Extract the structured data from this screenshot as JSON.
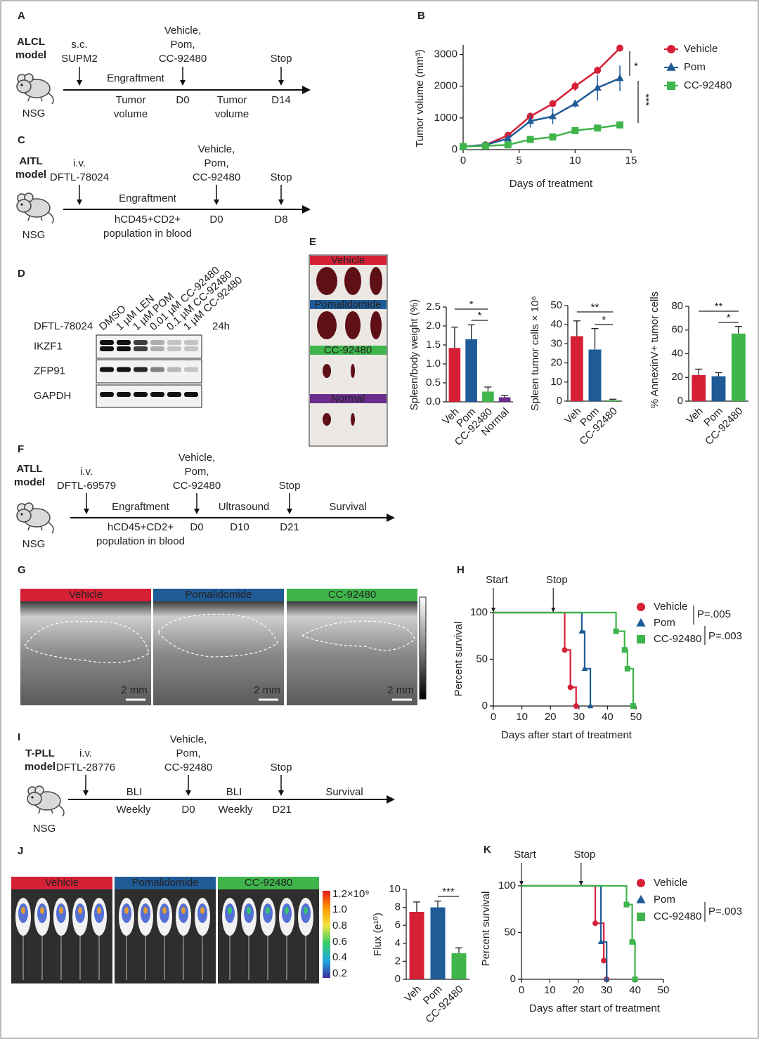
{
  "panel_labels": [
    "A",
    "B",
    "C",
    "D",
    "E",
    "F",
    "G",
    "H",
    "I",
    "J",
    "K"
  ],
  "timelines": [
    {
      "model": [
        "ALCL",
        "model"
      ],
      "mouse": "NSG",
      "above": [
        [
          "s.c.",
          "SUPM2"
        ],
        [
          "Vehicle,",
          "Pom,",
          "CC-92480"
        ],
        [
          "Stop"
        ]
      ],
      "middle": [
        "Engraftment"
      ],
      "below": [
        [
          "Tumor",
          "volume"
        ],
        [
          "D0"
        ],
        [
          "Tumor",
          "volume"
        ],
        [
          "D14"
        ]
      ]
    },
    {
      "model": [
        "AITL",
        "model"
      ],
      "mouse": "NSG",
      "above": [
        [
          "i.v.",
          "DFTL-78024"
        ],
        [
          "Vehicle,",
          "Pom,",
          "CC-92480"
        ],
        [
          "Stop"
        ]
      ],
      "middle": [
        "Engraftment"
      ],
      "below": [
        [
          "hCD45+CD2+",
          "population in blood"
        ],
        [
          "D0"
        ],
        [
          "D8"
        ]
      ]
    },
    {
      "model": [
        "ATLL",
        "model"
      ],
      "mouse": "NSG",
      "above": [
        [
          "i.v.",
          "DFTL-69579"
        ],
        [
          "Vehicle,",
          "Pom,",
          "CC-92480"
        ],
        [
          "Stop"
        ]
      ],
      "middle": [
        "Engraftment",
        "Ultrasound",
        "Survival"
      ],
      "below": [
        [
          "hCD45+CD2+",
          "population in blood"
        ],
        [
          "D0"
        ],
        [
          "D10"
        ],
        [
          "D21"
        ]
      ]
    },
    {
      "model": [
        "T-PLL",
        "model"
      ],
      "mouse": "NSG",
      "above": [
        [
          "i.v.",
          "DFTL-28776"
        ],
        [
          "Vehicle,",
          "Pom,",
          "CC-92480"
        ],
        [
          "Stop"
        ]
      ],
      "middle": [
        "BLI",
        "BLI",
        "Survival"
      ],
      "below": [
        [
          "Weekly"
        ],
        [
          "D0"
        ],
        [
          "Weekly"
        ],
        [
          "D21"
        ]
      ]
    }
  ],
  "western_blot": {
    "cell_line": "DFTL-78024",
    "time": "24h",
    "lanes": [
      "DMSO",
      "1 µM LEN",
      "1 µM POM",
      "0.01 µM CC-92480",
      "0.1 µM CC-92480",
      "1 µM CC-92480"
    ],
    "proteins": [
      "IKZF1",
      "ZFP91",
      "GAPDH"
    ]
  },
  "spleen_photos": {
    "groups": [
      "Vehicle",
      "Pomalidomide",
      "CC-92480",
      "Normal"
    ]
  },
  "ultrasound": {
    "groups": [
      "Vehicle",
      "Pomalidomide",
      "CC-92480"
    ],
    "scale_bars": [
      "2 mm",
      "2 mm",
      "2 mm"
    ]
  },
  "bli_images": {
    "groups": [
      "Vehicle",
      "Pomalidomide",
      "CC-92480"
    ],
    "colorbar_labels": [
      "1.2×10⁹",
      "1.0",
      "0.8",
      "0.6",
      "0.4",
      "0.2"
    ]
  },
  "chart_data": [
    {
      "type": "line",
      "y_label": "Tumor volume (mm³)",
      "x_label": "Days of treatment",
      "x": [
        0,
        2,
        4,
        6,
        8,
        10,
        12,
        14
      ],
      "series": [
        {
          "name": "Vehicle",
          "color": "#d62036",
          "marker": "circle",
          "values": [
            100,
            150,
            450,
            1050,
            1450,
            2000,
            2500,
            3200
          ],
          "errors": [
            30,
            30,
            60,
            120,
            80,
            150,
            120,
            100
          ]
        },
        {
          "name": "Pom",
          "color": "#1f5b97",
          "marker": "triangle",
          "values": [
            100,
            150,
            350,
            900,
            1050,
            1450,
            1950,
            2250
          ],
          "errors": [
            30,
            30,
            80,
            200,
            250,
            120,
            400,
            400
          ]
        },
        {
          "name": "CC-92480",
          "color": "#3fb54b",
          "marker": "square",
          "values": [
            100,
            120,
            150,
            320,
            400,
            600,
            680,
            780
          ],
          "errors": [
            20,
            20,
            30,
            40,
            40,
            40,
            40,
            40
          ]
        }
      ],
      "xlim": [
        0,
        15
      ],
      "xticks": [
        0,
        5,
        10,
        15
      ],
      "ylim": [
        0,
        3300
      ],
      "yticks": [
        0,
        1000,
        2000,
        3000
      ],
      "significance": [
        "*",
        "***"
      ]
    },
    {
      "type": "bar",
      "y_label": "Spleen/body weight (%)",
      "categories": [
        "Veh",
        "Pom",
        "CC-92480",
        "Normal"
      ],
      "values": [
        1.42,
        1.65,
        0.27,
        0.12
      ],
      "errors": [
        0.55,
        0.38,
        0.12,
        0.05
      ],
      "colors": [
        "#d62036",
        "#1f5b97",
        "#3fb54b",
        "#6b2d8c"
      ],
      "ylim": [
        0,
        2.5
      ],
      "yticks": [
        {
          "value": 0,
          "label": "0.0"
        },
        0.5,
        {
          "value": 1,
          "label": "1.0"
        },
        1.5,
        {
          "value": 2,
          "label": "2.0"
        },
        2.5
      ],
      "significance": [
        "*",
        "*"
      ]
    },
    {
      "type": "bar",
      "y_label": "Spleen tumor cells × 10⁶",
      "categories": [
        "Veh",
        "Pom",
        "CC-92480"
      ],
      "values": [
        34,
        27,
        0.5
      ],
      "errors": [
        8,
        11,
        0.5
      ],
      "colors": [
        "#d62036",
        "#1f5b97",
        "#3fb54b"
      ],
      "ylim": [
        0,
        50
      ],
      "yticks": [
        0,
        10,
        20,
        30,
        40,
        50
      ],
      "significance": [
        "**",
        "*"
      ]
    },
    {
      "type": "bar",
      "y_label": "% AnnexinV+ tumor cells",
      "categories": [
        "Veh",
        "Pom",
        "CC-92480"
      ],
      "values": [
        22,
        21,
        57
      ],
      "errors": [
        5,
        3,
        6
      ],
      "colors": [
        "#d62036",
        "#1f5b97",
        "#3fb54b"
      ],
      "ylim": [
        0,
        80
      ],
      "yticks": [
        0,
        20,
        40,
        60,
        80
      ],
      "significance": [
        "**",
        "*"
      ]
    },
    {
      "type": "survival",
      "y_label": "Percent survival",
      "x_label": "Days after start of treatment",
      "series": [
        {
          "name": "Vehicle",
          "color": "#d62036",
          "marker": "circle",
          "x": [
            0,
            25,
            27,
            29
          ],
          "values": [
            100,
            60,
            20,
            0
          ]
        },
        {
          "name": "Pom",
          "color": "#1f5b97",
          "marker": "triangle",
          "x": [
            0,
            31,
            32,
            34
          ],
          "values": [
            100,
            80,
            40,
            0
          ]
        },
        {
          "name": "CC-92480",
          "color": "#3fb54b",
          "marker": "square",
          "x": [
            0,
            43,
            46,
            47,
            49
          ],
          "values": [
            100,
            80,
            60,
            40,
            0
          ]
        }
      ],
      "xlim": [
        0,
        50
      ],
      "xticks": [
        0,
        10,
        20,
        30,
        40,
        50
      ],
      "ylim": [
        0,
        100
      ],
      "yticks": [
        0,
        50,
        100
      ],
      "annotations": [
        {
          "text": "Start",
          "x": 0
        },
        {
          "text": "Stop",
          "x": 21
        }
      ],
      "p_values": [
        "P=.005",
        "P=.003"
      ]
    },
    {
      "type": "bar",
      "y_label": "Flux (e¹⁰)",
      "categories": [
        "Veh",
        "Pom",
        "CC-92480"
      ],
      "values": [
        7.5,
        8.0,
        2.9
      ],
      "errors": [
        1.1,
        0.7,
        0.6
      ],
      "colors": [
        "#d62036",
        "#1f5b97",
        "#3fb54b"
      ],
      "ylim": [
        0,
        10
      ],
      "yticks": [
        0,
        2,
        4,
        6,
        8,
        10
      ],
      "significance": [
        "***"
      ]
    },
    {
      "type": "survival",
      "y_label": "Percent survival",
      "x_label": "Days after start of treatment",
      "series": [
        {
          "name": "Vehicle",
          "color": "#d62036",
          "marker": "circle",
          "x": [
            0,
            26,
            29,
            30
          ],
          "values": [
            100,
            60,
            20,
            0
          ]
        },
        {
          "name": "Pom",
          "color": "#1f5b97",
          "marker": "triangle",
          "x": [
            0,
            28,
            30
          ],
          "values": [
            100,
            40,
            0
          ]
        },
        {
          "name": "CC-92480",
          "color": "#3fb54b",
          "marker": "square",
          "x": [
            0,
            37,
            39,
            40
          ],
          "values": [
            100,
            80,
            40,
            0
          ]
        }
      ],
      "xlim": [
        0,
        50
      ],
      "xticks": [
        0,
        10,
        20,
        30,
        40,
        50
      ],
      "ylim": [
        0,
        100
      ],
      "yticks": [
        0,
        50,
        100
      ],
      "annotations": [
        {
          "text": "Start",
          "x": 0
        },
        {
          "text": "Stop",
          "x": 21
        }
      ],
      "p_values": [
        "P=.003"
      ]
    }
  ]
}
